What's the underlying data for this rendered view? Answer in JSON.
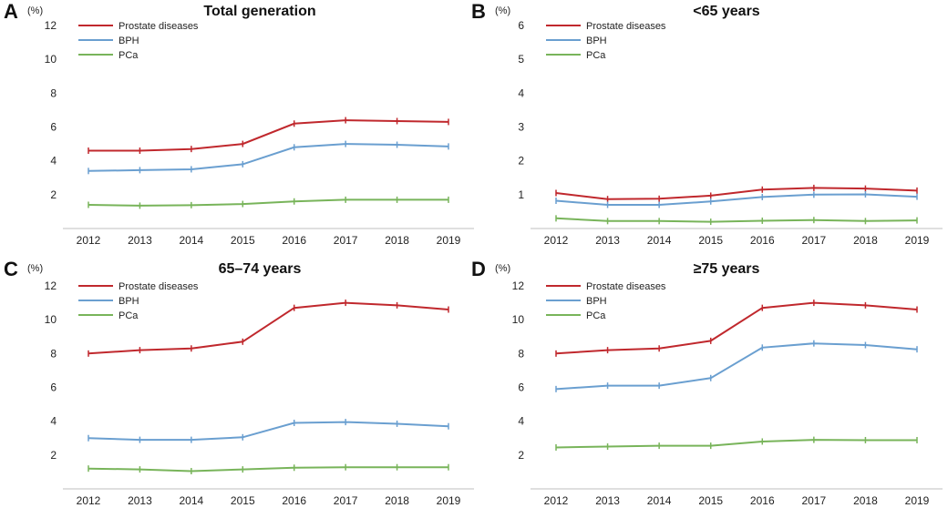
{
  "chart_data": [
    {
      "type": "line",
      "panel": "A",
      "title": "Total generation",
      "unit": "(%)",
      "categories": [
        "2012",
        "2013",
        "2014",
        "2015",
        "2016",
        "2017",
        "2018",
        "2019"
      ],
      "ylim": [
        0,
        12
      ],
      "yticks": [
        2,
        4,
        6,
        8,
        10,
        12
      ],
      "series": [
        {
          "name": "Prostate diseases",
          "color": "#c0282d",
          "values": [
            4.6,
            4.6,
            4.7,
            5.0,
            6.2,
            6.4,
            6.35,
            6.3
          ]
        },
        {
          "name": "BPH",
          "color": "#6a9fd0",
          "values": [
            3.4,
            3.45,
            3.5,
            3.8,
            4.8,
            5.0,
            4.95,
            4.85
          ]
        },
        {
          "name": "PCa",
          "color": "#78b45a",
          "values": [
            1.4,
            1.35,
            1.38,
            1.45,
            1.6,
            1.7,
            1.7,
            1.7
          ]
        }
      ]
    },
    {
      "type": "line",
      "panel": "B",
      "title": "<65 years",
      "unit": "(%)",
      "categories": [
        "2012",
        "2013",
        "2014",
        "2015",
        "2016",
        "2017",
        "2018",
        "2019"
      ],
      "ylim": [
        0,
        6
      ],
      "yticks": [
        1,
        2,
        3,
        4,
        5,
        6
      ],
      "series": [
        {
          "name": "Prostate diseases",
          "color": "#c0282d",
          "values": [
            1.05,
            0.87,
            0.88,
            0.97,
            1.15,
            1.2,
            1.18,
            1.12
          ]
        },
        {
          "name": "BPH",
          "color": "#6a9fd0",
          "values": [
            0.82,
            0.7,
            0.7,
            0.8,
            0.93,
            1.0,
            1.01,
            0.94
          ]
        },
        {
          "name": "PCa",
          "color": "#78b45a",
          "values": [
            0.3,
            0.22,
            0.22,
            0.2,
            0.23,
            0.25,
            0.22,
            0.24
          ]
        }
      ]
    },
    {
      "type": "line",
      "panel": "C",
      "title": "65–74 years",
      "unit": "(%)",
      "categories": [
        "2012",
        "2013",
        "2014",
        "2015",
        "2016",
        "2017",
        "2018",
        "2019"
      ],
      "ylim": [
        0,
        12
      ],
      "yticks": [
        2,
        4,
        6,
        8,
        10,
        12
      ],
      "series": [
        {
          "name": "Prostate diseases",
          "color": "#c0282d",
          "values": [
            8.0,
            8.2,
            8.3,
            8.7,
            10.7,
            11.0,
            10.85,
            10.6
          ]
        },
        {
          "name": "BPH",
          "color": "#6a9fd0",
          "values": [
            3.0,
            2.9,
            2.9,
            3.05,
            3.9,
            3.95,
            3.85,
            3.7
          ]
        },
        {
          "name": "PCa",
          "color": "#78b45a",
          "values": [
            1.2,
            1.15,
            1.05,
            1.15,
            1.25,
            1.28,
            1.28,
            1.28
          ]
        }
      ]
    },
    {
      "type": "line",
      "panel": "D",
      "title": "≥75 years",
      "unit": "(%)",
      "categories": [
        "2012",
        "2013",
        "2014",
        "2015",
        "2016",
        "2017",
        "2018",
        "2019"
      ],
      "ylim": [
        0,
        12
      ],
      "yticks": [
        2,
        4,
        6,
        8,
        10,
        12
      ],
      "series": [
        {
          "name": "Prostate diseases",
          "color": "#c0282d",
          "values": [
            8.0,
            8.2,
            8.3,
            8.75,
            10.7,
            11.0,
            10.85,
            10.6
          ]
        },
        {
          "name": "BPH",
          "color": "#6a9fd0",
          "values": [
            5.9,
            6.1,
            6.1,
            6.55,
            8.35,
            8.6,
            8.5,
            8.25
          ]
        },
        {
          "name": "PCa",
          "color": "#78b45a",
          "values": [
            2.45,
            2.5,
            2.55,
            2.55,
            2.8,
            2.9,
            2.88,
            2.88
          ]
        }
      ]
    }
  ]
}
